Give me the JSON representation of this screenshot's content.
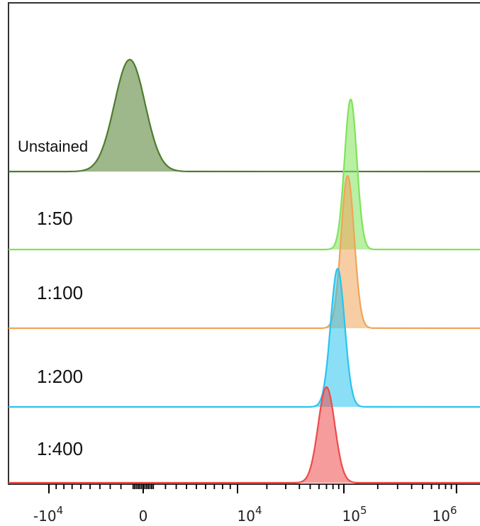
{
  "chart_data": {
    "type": "histogram-overlay",
    "x_scale": "biexponential",
    "x_ticks": [
      {
        "value": -10000,
        "base": "-10",
        "exp": "4"
      },
      {
        "value": 0,
        "base": "0",
        "exp": ""
      },
      {
        "value": 10000,
        "base": "10",
        "exp": "4"
      },
      {
        "value": 100000,
        "base": "10",
        "exp": "5"
      },
      {
        "value": 1000000,
        "base": "10",
        "exp": "6"
      }
    ],
    "xlim": [
      -20000,
      1500000
    ],
    "grid": false,
    "legend": "none",
    "series": [
      {
        "name": "Unstained",
        "color": "#4e7c2c",
        "peak_x": -1200,
        "spread": 0.07
      },
      {
        "name": "1:50",
        "color": "#7fe35a",
        "peak_x": 115000,
        "spread": 0.028
      },
      {
        "name": "1:100",
        "color": "#f0a45a",
        "peak_x": 108000,
        "spread": 0.03
      },
      {
        "name": "1:200",
        "color": "#29c4ee",
        "peak_x": 88000,
        "spread": 0.032
      },
      {
        "name": "1:400",
        "color": "#ee4a4a",
        "peak_x": 70000,
        "spread": 0.038
      }
    ]
  }
}
